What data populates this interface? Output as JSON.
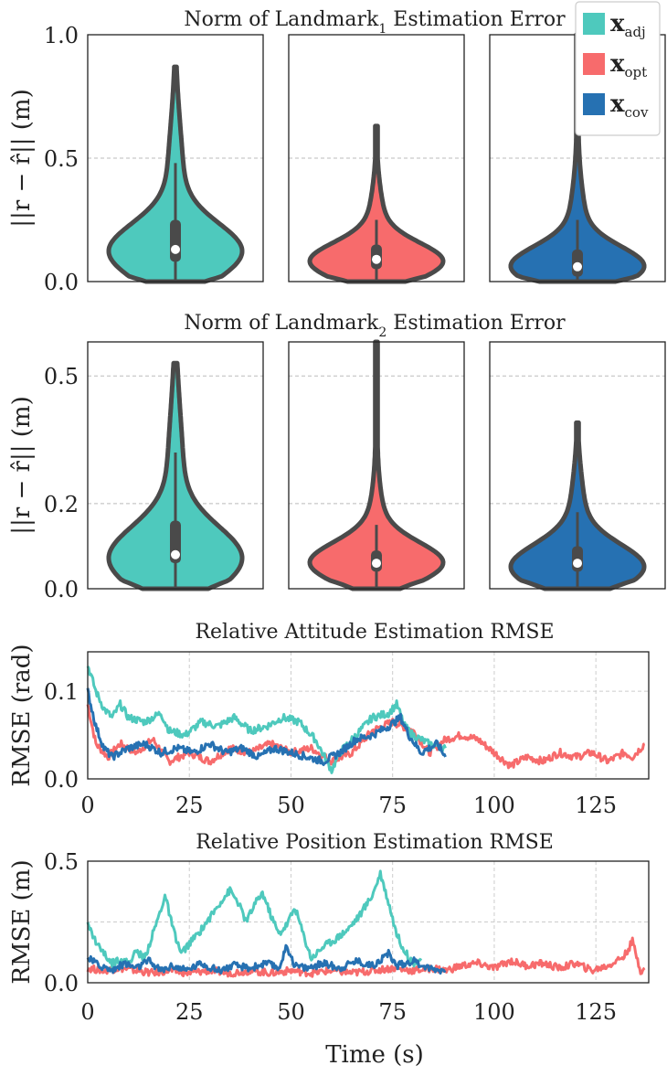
{
  "chart_data": [
    {
      "type": "violin",
      "title": "Norm of Landmark",
      "title_subscript": "1",
      "title_suffix": " Estimation Error",
      "ylabel": "||r − r̂|| (m)",
      "yticks": [
        "0.0",
        "0.5",
        "1.0"
      ],
      "ylim": [
        0,
        1.0
      ],
      "grid": "y-dashed",
      "violins": [
        {
          "series": "x_adj",
          "color": "#4ec9bd",
          "max": 0.87,
          "q1": 0.08,
          "median": 0.13,
          "q3": 0.25,
          "whisker_high": 0.48,
          "mode": 0.12
        },
        {
          "series": "x_opt",
          "color": "#f76b6c",
          "max": 0.63,
          "q1": 0.05,
          "median": 0.09,
          "q3": 0.15,
          "whisker_high": 0.25,
          "mode": 0.08
        },
        {
          "series": "x_cov",
          "color": "#2671b2",
          "max": 1.0,
          "q1": 0.02,
          "median": 0.06,
          "q3": 0.13,
          "whisker_high": 0.25,
          "mode": 0.06
        }
      ]
    },
    {
      "type": "violin",
      "title": "Norm of Landmark",
      "title_subscript": "2",
      "title_suffix": " Estimation Error",
      "ylabel": "||r − r̂|| (m)",
      "yticks": [
        "0.0",
        "0.2",
        "0.5"
      ],
      "ylim": [
        0,
        0.58
      ],
      "grid": "y-dashed",
      "violins": [
        {
          "series": "x_adj",
          "color": "#4ec9bd",
          "max": 0.53,
          "q1": 0.06,
          "median": 0.08,
          "q3": 0.16,
          "whisker_high": 0.32,
          "mode": 0.07
        },
        {
          "series": "x_opt",
          "color": "#f76b6c",
          "max": 0.58,
          "q1": 0.04,
          "median": 0.06,
          "q3": 0.09,
          "whisker_high": 0.15,
          "mode": 0.06
        },
        {
          "series": "x_cov",
          "color": "#2671b2",
          "max": 0.39,
          "q1": 0.04,
          "median": 0.06,
          "q3": 0.1,
          "whisker_high": 0.18,
          "mode": 0.05
        }
      ]
    },
    {
      "type": "line",
      "title": "Relative Attitude Estimation RMSE",
      "ylabel": "RMSE (rad)",
      "yticks": [
        "0.0",
        "0.1"
      ],
      "ylim": [
        0,
        0.145
      ],
      "xticks": [
        "0",
        "25",
        "50",
        "75",
        "100",
        "125"
      ],
      "xlim": [
        0,
        138
      ],
      "grid": "both-dashed",
      "series": [
        {
          "name": "x_opt",
          "color": "#f76b6c",
          "points": [
            [
              0,
              0.085
            ],
            [
              2,
              0.04
            ],
            [
              5,
              0.025
            ],
            [
              8,
              0.04
            ],
            [
              12,
              0.03
            ],
            [
              16,
              0.045
            ],
            [
              20,
              0.02
            ],
            [
              25,
              0.03
            ],
            [
              30,
              0.02
            ],
            [
              35,
              0.035
            ],
            [
              40,
              0.03
            ],
            [
              45,
              0.04
            ],
            [
              50,
              0.03
            ],
            [
              55,
              0.035
            ],
            [
              60,
              0.02
            ],
            [
              65,
              0.03
            ],
            [
              70,
              0.055
            ],
            [
              75,
              0.065
            ],
            [
              80,
              0.055
            ],
            [
              84,
              0.03
            ],
            [
              88,
              0.045
            ],
            [
              92,
              0.05
            ],
            [
              96,
              0.045
            ],
            [
              100,
              0.03
            ],
            [
              104,
              0.015
            ],
            [
              108,
              0.025
            ],
            [
              112,
              0.02
            ],
            [
              116,
              0.03
            ],
            [
              120,
              0.025
            ],
            [
              124,
              0.03
            ],
            [
              128,
              0.02
            ],
            [
              132,
              0.03
            ],
            [
              134,
              0.025
            ],
            [
              137,
              0.04
            ]
          ]
        },
        {
          "name": "x_adj",
          "color": "#4ec9bd",
          "points": [
            [
              0,
              0.13
            ],
            [
              2,
              0.1
            ],
            [
              4,
              0.08
            ],
            [
              6,
              0.07
            ],
            [
              8,
              0.085
            ],
            [
              10,
              0.07
            ],
            [
              14,
              0.065
            ],
            [
              18,
              0.075
            ],
            [
              20,
              0.055
            ],
            [
              24,
              0.05
            ],
            [
              28,
              0.065
            ],
            [
              32,
              0.06
            ],
            [
              36,
              0.07
            ],
            [
              40,
              0.055
            ],
            [
              44,
              0.06
            ],
            [
              48,
              0.07
            ],
            [
              52,
              0.065
            ],
            [
              56,
              0.045
            ],
            [
              60,
              0.01
            ],
            [
              62,
              0.03
            ],
            [
              66,
              0.05
            ],
            [
              70,
              0.07
            ],
            [
              74,
              0.075
            ],
            [
              76,
              0.085
            ],
            [
              78,
              0.06
            ],
            [
              80,
              0.05
            ],
            [
              84,
              0.04
            ],
            [
              88,
              0.035
            ]
          ]
        },
        {
          "name": "x_cov",
          "color": "#2671b2",
          "points": [
            [
              0,
              0.1
            ],
            [
              2,
              0.06
            ],
            [
              4,
              0.035
            ],
            [
              6,
              0.025
            ],
            [
              10,
              0.035
            ],
            [
              14,
              0.04
            ],
            [
              18,
              0.03
            ],
            [
              22,
              0.035
            ],
            [
              26,
              0.03
            ],
            [
              30,
              0.04
            ],
            [
              34,
              0.03
            ],
            [
              38,
              0.035
            ],
            [
              42,
              0.025
            ],
            [
              46,
              0.035
            ],
            [
              50,
              0.03
            ],
            [
              54,
              0.025
            ],
            [
              58,
              0.02
            ],
            [
              62,
              0.03
            ],
            [
              66,
              0.045
            ],
            [
              70,
              0.05
            ],
            [
              74,
              0.06
            ],
            [
              77,
              0.07
            ],
            [
              79,
              0.05
            ],
            [
              82,
              0.03
            ],
            [
              86,
              0.04
            ],
            [
              88,
              0.025
            ]
          ]
        }
      ]
    },
    {
      "type": "line",
      "title": "Relative Position Estimation RMSE",
      "ylabel": "RMSE (m)",
      "yticks": [
        "0.0",
        "0.5"
      ],
      "ylim": [
        0,
        0.5
      ],
      "xticks": [
        "0",
        "25",
        "50",
        "75",
        "100",
        "125"
      ],
      "xlim": [
        0,
        138
      ],
      "xlabel": "Time (s)",
      "grid": "both-dashed",
      "series": [
        {
          "name": "x_opt",
          "color": "#f76b6c",
          "points": [
            [
              0,
              0.06
            ],
            [
              4,
              0.05
            ],
            [
              8,
              0.06
            ],
            [
              12,
              0.05
            ],
            [
              16,
              0.04
            ],
            [
              20,
              0.05
            ],
            [
              25,
              0.04
            ],
            [
              30,
              0.05
            ],
            [
              35,
              0.04
            ],
            [
              40,
              0.05
            ],
            [
              45,
              0.04
            ],
            [
              50,
              0.05
            ],
            [
              55,
              0.04
            ],
            [
              60,
              0.05
            ],
            [
              65,
              0.04
            ],
            [
              70,
              0.05
            ],
            [
              75,
              0.06
            ],
            [
              80,
              0.05
            ],
            [
              85,
              0.06
            ],
            [
              88,
              0.05
            ],
            [
              92,
              0.07
            ],
            [
              96,
              0.08
            ],
            [
              100,
              0.06
            ],
            [
              104,
              0.09
            ],
            [
              108,
              0.07
            ],
            [
              112,
              0.08
            ],
            [
              116,
              0.06
            ],
            [
              120,
              0.08
            ],
            [
              124,
              0.05
            ],
            [
              128,
              0.07
            ],
            [
              132,
              0.11
            ],
            [
              134,
              0.17
            ],
            [
              136,
              0.05
            ],
            [
              137,
              0.06
            ]
          ]
        },
        {
          "name": "x_adj",
          "color": "#4ec9bd",
          "points": [
            [
              0,
              0.24
            ],
            [
              2,
              0.17
            ],
            [
              4,
              0.12
            ],
            [
              6,
              0.08
            ],
            [
              8,
              0.1
            ],
            [
              10,
              0.08
            ],
            [
              12,
              0.13
            ],
            [
              14,
              0.1
            ],
            [
              16,
              0.2
            ],
            [
              18,
              0.3
            ],
            [
              19,
              0.36
            ],
            [
              21,
              0.22
            ],
            [
              23,
              0.12
            ],
            [
              26,
              0.18
            ],
            [
              28,
              0.22
            ],
            [
              31,
              0.29
            ],
            [
              33,
              0.34
            ],
            [
              35,
              0.38
            ],
            [
              37,
              0.33
            ],
            [
              39,
              0.25
            ],
            [
              41,
              0.32
            ],
            [
              43,
              0.37
            ],
            [
              45,
              0.28
            ],
            [
              47,
              0.2
            ],
            [
              49,
              0.24
            ],
            [
              51,
              0.31
            ],
            [
              53,
              0.2
            ],
            [
              55,
              0.1
            ],
            [
              58,
              0.15
            ],
            [
              61,
              0.18
            ],
            [
              64,
              0.22
            ],
            [
              67,
              0.28
            ],
            [
              70,
              0.36
            ],
            [
              72,
              0.45
            ],
            [
              74,
              0.33
            ],
            [
              76,
              0.2
            ],
            [
              78,
              0.13
            ],
            [
              80,
              0.08
            ],
            [
              82,
              0.1
            ]
          ]
        },
        {
          "name": "x_cov",
          "color": "#2671b2",
          "points": [
            [
              0,
              0.1
            ],
            [
              3,
              0.07
            ],
            [
              6,
              0.05
            ],
            [
              9,
              0.08
            ],
            [
              12,
              0.06
            ],
            [
              15,
              0.09
            ],
            [
              18,
              0.05
            ],
            [
              21,
              0.07
            ],
            [
              24,
              0.05
            ],
            [
              28,
              0.08
            ],
            [
              32,
              0.05
            ],
            [
              36,
              0.07
            ],
            [
              40,
              0.06
            ],
            [
              44,
              0.08
            ],
            [
              47,
              0.06
            ],
            [
              49,
              0.15
            ],
            [
              51,
              0.07
            ],
            [
              54,
              0.06
            ],
            [
              58,
              0.08
            ],
            [
              62,
              0.06
            ],
            [
              66,
              0.09
            ],
            [
              70,
              0.07
            ],
            [
              74,
              0.12
            ],
            [
              76,
              0.07
            ],
            [
              80,
              0.09
            ],
            [
              84,
              0.06
            ],
            [
              88,
              0.05
            ]
          ]
        }
      ]
    }
  ],
  "legend": {
    "placement": "top-right",
    "items": [
      {
        "base": "x",
        "sub": "adj",
        "color": "#4ec9bd"
      },
      {
        "base": "x",
        "sub": "opt",
        "color": "#f76b6c"
      },
      {
        "base": "x",
        "sub": "cov",
        "color": "#2671b2"
      }
    ]
  }
}
